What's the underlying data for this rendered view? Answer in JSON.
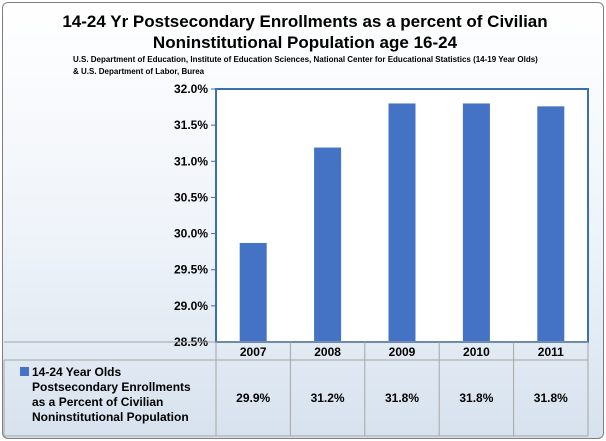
{
  "chart_data": {
    "type": "bar",
    "title": "14-24 Yr Postsecondary Enrollments as a percent of Civilian Noninstitutional Population age 16-24",
    "subtitle": "U.S. Department of Education, Institute of Education Sciences, National Center for Educational Statistics  (14-19 Year Olds) & U.S. Department of Labor, Burea",
    "categories": [
      "2007",
      "2008",
      "2009",
      "2010",
      "2011"
    ],
    "series": [
      {
        "name": "14-24 Year Olds Postsecondary Enrollments as a Percent of Civilian Noninstitutional Population",
        "values": [
          29.87,
          31.19,
          31.8,
          31.8,
          31.76
        ],
        "labels": [
          "29.9%",
          "31.2%",
          "31.8%",
          "31.8%",
          "31.8%"
        ],
        "color": "#4472c4"
      }
    ],
    "yticks": [
      "28.5%",
      "29.0%",
      "29.5%",
      "30.0%",
      "30.5%",
      "31.0%",
      "31.5%",
      "32.0%"
    ],
    "ylim": [
      28.5,
      32.0
    ],
    "grid": false,
    "legend": "data-table"
  }
}
